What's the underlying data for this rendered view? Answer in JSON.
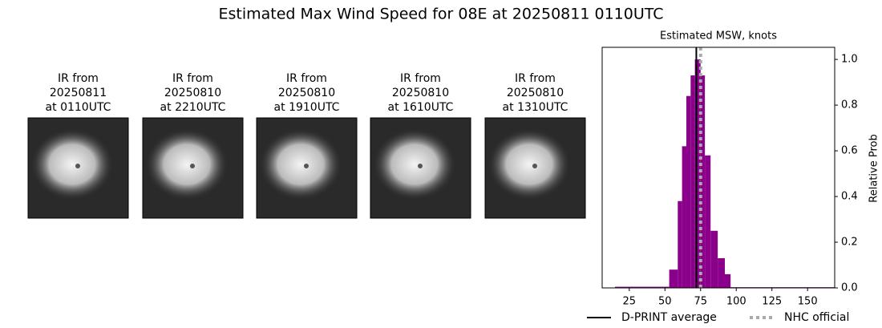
{
  "title": "Estimated Max Wind Speed for 08E at 20250811 0110UTC",
  "panels": [
    {
      "lines": [
        "IR from",
        "20250811",
        "at 0110UTC"
      ]
    },
    {
      "lines": [
        "IR from",
        "20250810",
        "at 2210UTC"
      ]
    },
    {
      "lines": [
        "IR from",
        "20250810",
        "at 1910UTC"
      ]
    },
    {
      "lines": [
        "IR from",
        "20250810",
        "at 1610UTC"
      ]
    },
    {
      "lines": [
        "IR from",
        "20250810",
        "at 1310UTC"
      ]
    }
  ],
  "chart_data": {
    "type": "histogram",
    "title": "Estimated MSW, knots",
    "ylabel": "Relative Prob",
    "bins": [
      15,
      53,
      59,
      62,
      65,
      68,
      71,
      75,
      78,
      82,
      87,
      92,
      96,
      169
    ],
    "values": [
      0.005,
      0.08,
      0.38,
      0.62,
      0.84,
      0.93,
      1.0,
      0.93,
      0.58,
      0.25,
      0.13,
      0.06,
      0.003
    ],
    "color": "#8b008b",
    "vlines": [
      {
        "name": "D-PRINT average",
        "value": 72,
        "color": "#000000",
        "style": "solid"
      },
      {
        "name": "NHC official",
        "value": 75,
        "color": "#aaaaaa",
        "style": "dotted"
      }
    ],
    "xlim": [
      6,
      169
    ],
    "ylim": [
      0,
      1.053
    ],
    "xticks": [
      25,
      50,
      75,
      100,
      125,
      150
    ],
    "yticks": [
      {
        "value": 0,
        "label": "0.0"
      },
      0.2,
      0.4,
      0.6,
      0.8,
      {
        "value": 1,
        "label": "1.0"
      }
    ]
  }
}
